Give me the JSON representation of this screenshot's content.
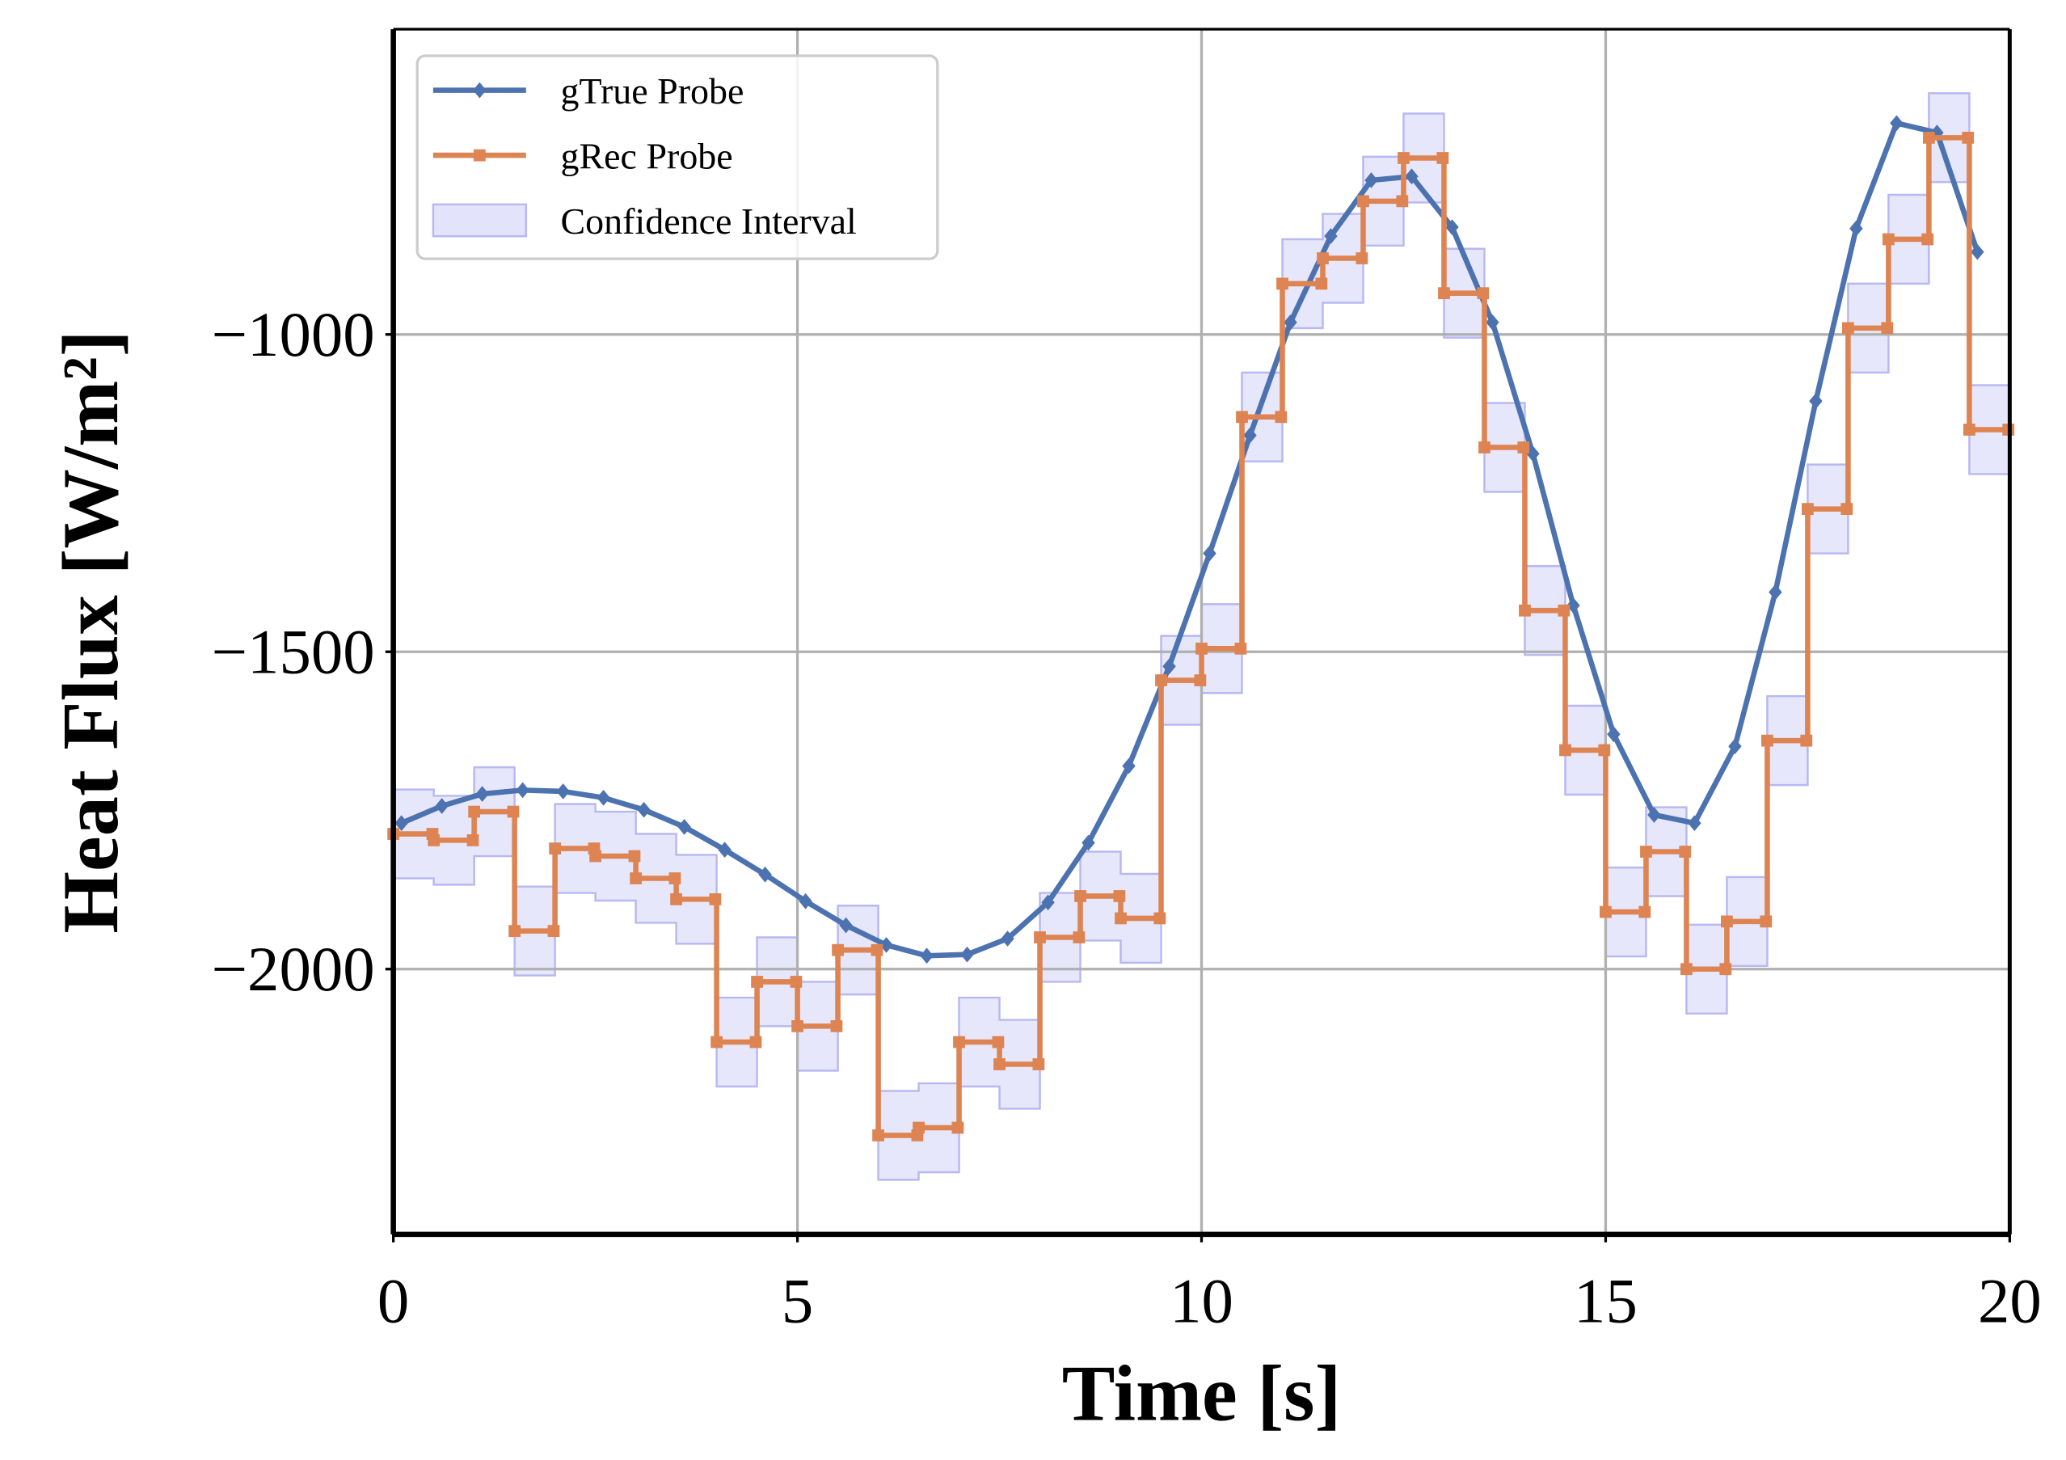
{
  "chart_data": {
    "type": "line",
    "xlabel": "Time [s]",
    "ylabel": "Heat Flux [W/m²]",
    "xlim": [
      0,
      20
    ],
    "ylim": [
      -2418,
      -519
    ],
    "xticks": [
      0,
      5,
      10,
      15,
      20
    ],
    "yticks": [
      {
        "value": -2000,
        "label": "−2000"
      },
      {
        "value": -1500,
        "label": "−1500"
      },
      {
        "value": -1000,
        "label": "−1000"
      }
    ],
    "grid": true,
    "legend": "upper left",
    "series": [
      {
        "name": "gTrue Probe",
        "color": "#4c72b0",
        "marker": "diamond",
        "x": [
          0.1,
          0.6,
          1.1,
          1.6,
          2.1,
          2.6,
          3.1,
          3.6,
          4.1,
          4.6,
          5.1,
          5.6,
          6.1,
          6.6,
          7.1,
          7.6,
          8.1,
          8.6,
          9.1,
          9.6,
          10.1,
          10.6,
          11.1,
          11.6,
          12.1,
          12.6,
          13.1,
          13.6,
          14.1,
          14.6,
          15.1,
          15.6,
          16.1,
          16.6,
          17.1,
          17.6,
          18.1,
          18.6,
          19.1,
          19.6
        ],
        "values": [
          -1770,
          -1743,
          -1724,
          -1718,
          -1720,
          -1730,
          -1749,
          -1776,
          -1812,
          -1851,
          -1893,
          -1931,
          -1962,
          -1979,
          -1977,
          -1952,
          -1895,
          -1801,
          -1680,
          -1523,
          -1345,
          -1159,
          -981,
          -845,
          -757,
          -751,
          -831,
          -981,
          -1188,
          -1427,
          -1630,
          -1757,
          -1770,
          -1649,
          -1406,
          -1105,
          -833,
          -667,
          -682,
          -870
        ]
      },
      {
        "name": "gRec Probe",
        "color": "#dd8452",
        "marker": "square",
        "step": "post",
        "x": [
          0,
          0.5,
          1,
          1.5,
          2,
          2.5,
          3,
          3.5,
          4,
          4.5,
          5,
          5.5,
          6,
          6.5,
          7,
          7.5,
          8,
          8.5,
          9,
          9.5,
          10,
          10.5,
          11,
          11.5,
          12,
          12.5,
          13,
          13.5,
          14,
          14.5,
          15,
          15.5,
          16,
          16.5,
          17,
          17.5,
          18,
          18.5,
          19,
          19.5
        ],
        "values": [
          -1787,
          -1797,
          -1752,
          -1940,
          -1810,
          -1822,
          -1857,
          -1890,
          -2115,
          -2020,
          -2090,
          -1970,
          -2262,
          -2250,
          -2115,
          -2150,
          -1950,
          -1885,
          -1920,
          -1545,
          -1495,
          -1130,
          -920,
          -880,
          -790,
          -722,
          -935,
          -1178,
          -1435,
          -1655,
          -1910,
          -1815,
          -2000,
          -1925,
          -1640,
          -1275,
          -990,
          -850,
          -690,
          -1150
        ]
      }
    ],
    "band": {
      "name": "Confidence Interval",
      "color": "#e3e3fb",
      "edge": "#b8b8f2",
      "half_width": 70
    }
  }
}
